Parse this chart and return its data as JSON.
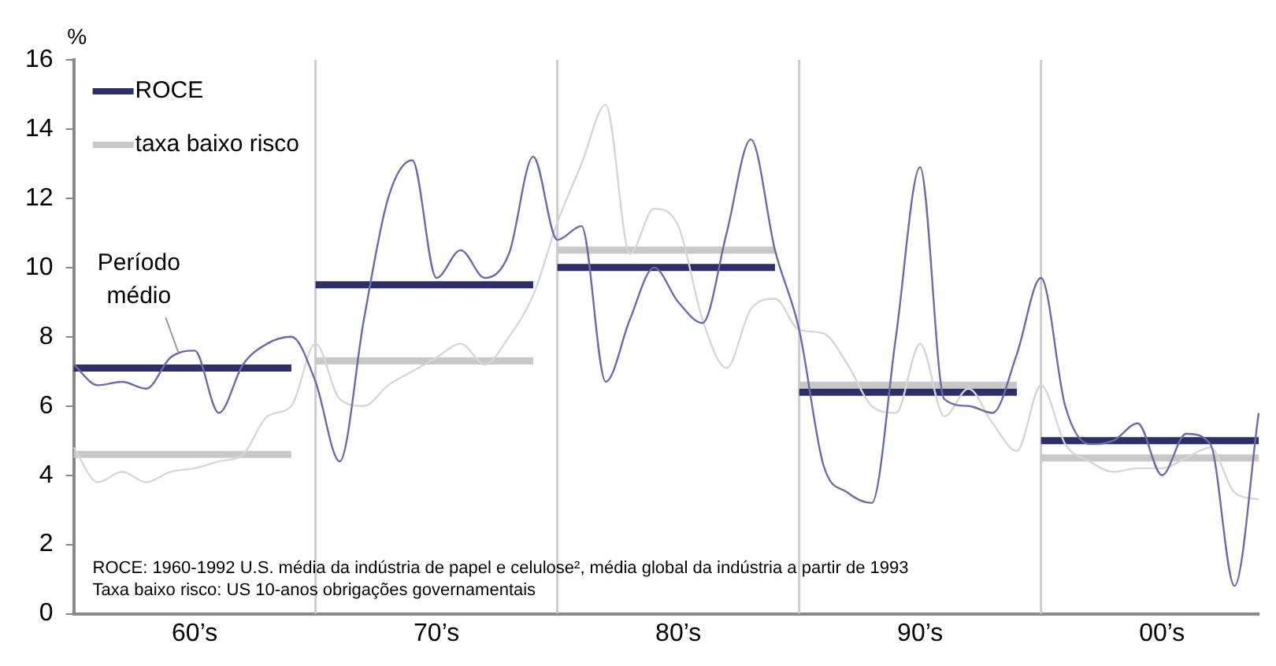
{
  "chart_data": {
    "type": "line",
    "ylabel": "%",
    "ylim": [
      0,
      16
    ],
    "yticks": [
      0,
      2,
      4,
      6,
      8,
      10,
      12,
      14,
      16
    ],
    "grid": "x",
    "legend": "top left",
    "marker": "none",
    "categories": [
      null,
      null,
      null,
      null,
      null,
      "60’s",
      null,
      null,
      null,
      null,
      null,
      null,
      null,
      null,
      null,
      "70’s",
      null,
      null,
      null,
      null,
      null,
      null,
      null,
      null,
      null,
      "80’s",
      null,
      null,
      null,
      null,
      null,
      null,
      null,
      null,
      null,
      "90’s",
      null,
      null,
      null,
      null,
      null,
      null,
      null,
      null,
      null,
      "00’s",
      null,
      null,
      null,
      null
    ],
    "series": [
      {
        "color": "#6b6ba6",
        "values": [
          7.2,
          6.6,
          6.7,
          6.5,
          7.4,
          7.6,
          5.8,
          7.2,
          7.8,
          8.0,
          6.7,
          4.4,
          8.5,
          12.0,
          13.1,
          9.7,
          10.5,
          9.7,
          10.4,
          13.2,
          10.8,
          11.2,
          6.7,
          8.5,
          10.0,
          9.0,
          8.4,
          11.0,
          13.7,
          10.5,
          8.2,
          4.3,
          3.5,
          3.2,
          8.0,
          12.9,
          6.2,
          6.0,
          5.8,
          7.5,
          9.7,
          6.0,
          4.9,
          5.0,
          5.5,
          4.0,
          5.2,
          4.9,
          0.8,
          5.8
        ]
      },
      {
        "color": "#d6d6d6",
        "values": [
          4.8,
          3.8,
          4.1,
          3.8,
          4.1,
          4.2,
          4.4,
          4.6,
          5.7,
          6.0,
          7.8,
          6.2,
          6.0,
          6.6,
          7.0,
          7.4,
          7.8,
          7.2,
          8.0,
          9.2,
          11.3,
          13.0,
          14.7,
          10.4,
          11.7,
          11.2,
          8.5,
          7.1,
          8.8,
          9.1,
          8.2,
          8.1,
          7.2,
          6.0,
          5.8,
          7.8,
          5.7,
          6.5,
          5.5,
          4.7,
          6.6,
          4.9,
          4.4,
          4.1,
          4.2,
          4.2,
          4.5,
          4.8,
          3.5,
          3.3
        ]
      },
      {
        "name": "ROCE",
        "color": "#2e2e6b",
        "values": [
          7.1,
          7.1,
          7.1,
          7.1,
          7.1,
          7.1,
          7.1,
          7.1,
          7.1,
          7.1,
          9.5,
          9.5,
          9.5,
          9.5,
          9.5,
          9.5,
          9.5,
          9.5,
          9.5,
          9.5,
          10.0,
          10.0,
          10.0,
          10.0,
          10.0,
          10.0,
          10.0,
          10.0,
          10.0,
          10.0,
          6.4,
          6.4,
          6.4,
          6.4,
          6.4,
          6.4,
          6.4,
          6.4,
          6.4,
          6.4,
          5.0,
          5.0,
          5.0,
          5.0,
          5.0,
          5.0,
          5.0,
          5.0,
          5.0,
          5.0
        ]
      },
      {
        "name": "taxa baixo risco",
        "color": "#c8c8c8",
        "values": [
          4.6,
          4.6,
          4.6,
          4.6,
          4.6,
          4.6,
          4.6,
          4.6,
          4.6,
          4.6,
          7.3,
          7.3,
          7.3,
          7.3,
          7.3,
          7.3,
          7.3,
          7.3,
          7.3,
          7.3,
          10.5,
          10.5,
          10.5,
          10.5,
          10.5,
          10.5,
          10.5,
          10.5,
          10.5,
          10.5,
          6.6,
          6.6,
          6.6,
          6.6,
          6.6,
          6.6,
          6.6,
          6.6,
          6.6,
          6.6,
          4.5,
          4.5,
          4.5,
          4.5,
          4.5,
          4.5,
          4.5,
          4.5,
          4.5,
          4.5
        ]
      }
    ],
    "annotations": [
      {
        "text": "Período médio",
        "y": 7.1
      },
      "ROCE: 1960-1992 U.S. média da indústria de papel e celulose², média global da indústria a partir de 1993",
      "Taxa baixo risco: US 10-anos obrigações governamentais"
    ]
  }
}
